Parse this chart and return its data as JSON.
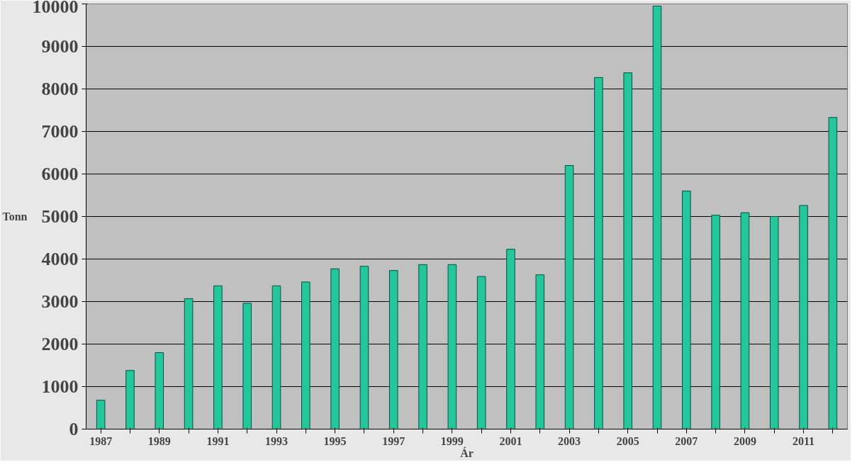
{
  "chart_data": {
    "type": "bar",
    "xlabel": "Ár",
    "ylabel": "Tonn",
    "categories": [
      "1987",
      null,
      "1989",
      null,
      "1991",
      null,
      "1993",
      null,
      "1995",
      null,
      "1997",
      null,
      "1999",
      null,
      "2001",
      null,
      "2003",
      null,
      "2005",
      null,
      "2007",
      null,
      "2009",
      null,
      "2011",
      null
    ],
    "values": [
      680,
      1380,
      1800,
      3070,
      3370,
      2960,
      3370,
      3460,
      3770,
      3830,
      3730,
      3870,
      3870,
      3590,
      4230,
      3630,
      6200,
      8270,
      8380,
      9950,
      5600,
      5030,
      5090,
      5000,
      5260,
      7330
    ],
    "color": "#22c79c",
    "ylim": [
      0,
      10000
    ],
    "yticks": [
      0,
      1000,
      2000,
      3000,
      4000,
      5000,
      6000,
      7000,
      8000,
      9000,
      10000
    ],
    "grid": "y"
  }
}
